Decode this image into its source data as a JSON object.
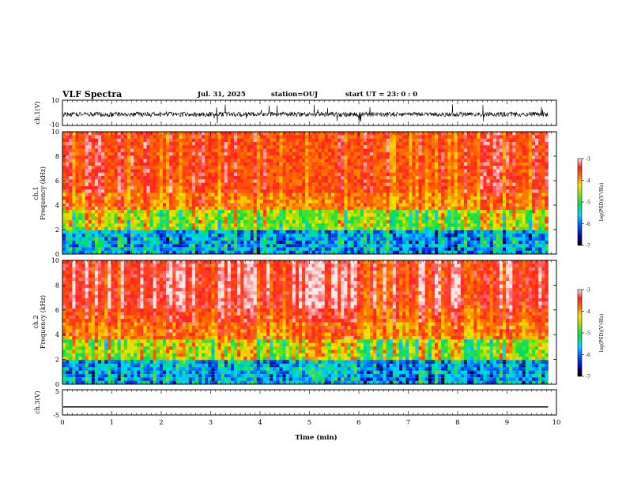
{
  "header": {
    "title": "VLF Spectra",
    "date": "Jul. 31, 2025",
    "station": "station=OUJ",
    "start": "start  UT =  23: 0  : 0"
  },
  "chart_data": [
    {
      "type": "line",
      "panel": "ch1-waveform",
      "ylabel": "ch.1(V)",
      "ylim": [
        -10,
        10
      ],
      "yticks": [
        "10",
        "-10"
      ],
      "x_range_min": [
        0,
        9.83
      ],
      "description_level": 0
    },
    {
      "type": "heatmap",
      "panel": "ch1-spectrogram",
      "ylabel_channel": "ch.1",
      "ylabel": "Frequency  (kHz)",
      "ylim": [
        0,
        10
      ],
      "yticks": [
        "0",
        "2",
        "4",
        "6",
        "8",
        "10"
      ],
      "colorbar": {
        "label": "log(PSD)(V²/Hz)",
        "ticks": [
          "-3",
          "-4",
          "-5",
          "-6",
          "-7"
        ],
        "range": [
          -7,
          -3
        ]
      }
    },
    {
      "type": "heatmap",
      "panel": "ch2-spectrogram",
      "ylabel_channel": "ch.2",
      "ylabel": "Frequency  (kHz)",
      "ylim": [
        0,
        10
      ],
      "yticks": [
        "0",
        "2",
        "4",
        "6",
        "8",
        "10"
      ],
      "colorbar": {
        "label": "log(PSD)(V²/Hz)",
        "ticks": [
          "-3",
          "-4",
          "-5",
          "-6",
          "-7"
        ],
        "range": [
          -7,
          -3
        ]
      }
    },
    {
      "type": "line",
      "panel": "ch3-waveform",
      "ylabel": "ch.3(V)",
      "ylim": [
        -5,
        5
      ],
      "yticks": [
        "5",
        "-5"
      ],
      "constant_value": -1.8
    }
  ],
  "x_axis": {
    "label": "Time  (min)",
    "range": [
      0,
      10
    ],
    "ticks": [
      "0",
      "1",
      "2",
      "3",
      "4",
      "5",
      "6",
      "7",
      "8",
      "9",
      "10"
    ]
  }
}
